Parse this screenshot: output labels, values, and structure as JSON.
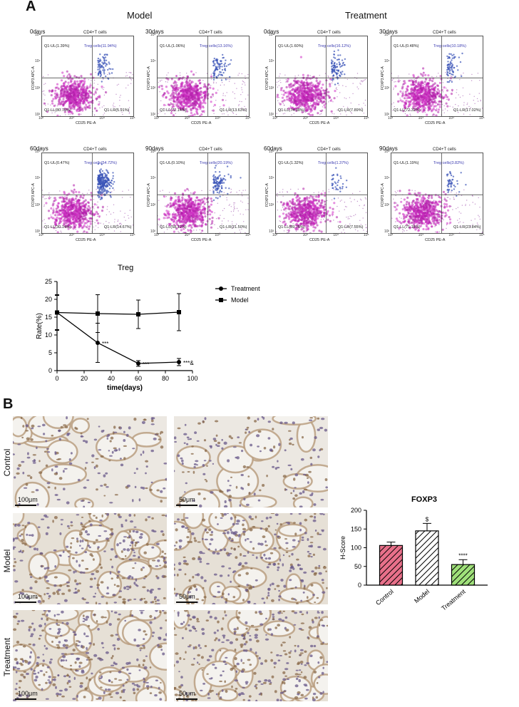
{
  "panel_a": {
    "letter": "A",
    "groups": [
      {
        "title": "Model",
        "plots": [
          {
            "day": "0days",
            "header": "CD4+T cells",
            "ul": "Q1-UL(1.39%)",
            "treg": "Treg cells(11.94%)",
            "ll": "Q1-LL(80.76%)",
            "lr": "Q1-LR(5.91%)"
          },
          {
            "day": "30days",
            "header": "CD4+T cells",
            "ul": "Q1-UL(1.06%)",
            "treg": "Treg cells(13.16%)",
            "ll": "Q1-LL(72.14%)",
            "lr": "Q1-LR(13.63%)"
          },
          {
            "day": "60days",
            "header": "CD4+T cells",
            "ul": "Q1-UL(0.47%)",
            "treg": "Treg cells(54.72%)",
            "ll": "Q1-LL(30.14%)",
            "lr": "Q1-LR(14.67%)"
          },
          {
            "day": "90days",
            "header": "CD4+T cells",
            "ul": "Q1-UL(0.10%)",
            "treg": "Treg cells(20.19%)",
            "ll": "Q1-LL(58.12%)",
            "lr": "Q1-LR(21.50%)"
          }
        ]
      },
      {
        "title": "Treatment",
        "plots": [
          {
            "day": "0days",
            "header": "CD4+T cells",
            "ul": "Q1-UL(1.60%)",
            "treg": "Treg cells(16.12%)",
            "ll": "Q1-LL(74.38%)",
            "lr": "Q1-LR(7.89%)"
          },
          {
            "day": "30days",
            "header": "CD4+T cells",
            "ul": "Q1-UL(0.48%)",
            "treg": "Treg cells(10.18%)",
            "ll": "Q1-LL(72.32%)",
            "lr": "Q1-LR(17.02%)"
          },
          {
            "day": "60days",
            "header": "CD4+T cells",
            "ul": "Q1-UL(1.32%)",
            "treg": "Treg cells(1.37%)",
            "ll": "Q1-LL(89.75%)",
            "lr": "Q1-LR(7.55%)"
          },
          {
            "day": "90days",
            "header": "CD4+T cells",
            "ul": "Q1-UL(1.19%)",
            "treg": "Treg cells(3.82%)",
            "ll": "Q1-LL(71.15%)",
            "lr": "Q1-LR(23.84%)"
          }
        ]
      }
    ],
    "axis": {
      "x": "CD25 PE-A",
      "y": "FOXP3 APC-A",
      "ticks": [
        "10²",
        "10³",
        "10⁴",
        "10⁵"
      ]
    }
  },
  "panel_b": {
    "letter": "B",
    "rows": [
      "Control",
      "Model",
      "Treatment"
    ],
    "scale_left": "100μm",
    "scale_right": "50μm"
  },
  "chart_data": [
    {
      "type": "line",
      "title": "Treg",
      "xlabel": "time(days)",
      "ylabel": "Rate(%)",
      "xlim": [
        0,
        100
      ],
      "ylim": [
        0,
        25
      ],
      "xticks": [
        0,
        20,
        40,
        60,
        80,
        100
      ],
      "yticks": [
        0,
        5,
        10,
        15,
        20,
        25
      ],
      "legend_position": "right",
      "series": [
        {
          "name": "Treatment",
          "marker": "circle",
          "x": [
            0,
            30,
            60,
            90
          ],
          "y": [
            16.3,
            7.8,
            2.0,
            2.4
          ],
          "err": [
            5.0,
            5.5,
            0.8,
            1.0
          ],
          "annotations": [
            "",
            "***",
            "***",
            "***&"
          ]
        },
        {
          "name": "Model",
          "marker": "square",
          "x": [
            0,
            30,
            60,
            90
          ],
          "y": [
            16.3,
            16.0,
            15.8,
            16.4
          ],
          "err": [
            4.8,
            5.3,
            4.0,
            5.2
          ]
        }
      ]
    },
    {
      "type": "bar",
      "title": "FOXP3",
      "ylabel": "H-Score",
      "ylim": [
        0,
        200
      ],
      "yticks": [
        0,
        50,
        100,
        150,
        200
      ],
      "categories": [
        "Control",
        "Model",
        "Treatment"
      ],
      "values": [
        106,
        145,
        55
      ],
      "errors": [
        9,
        20,
        13
      ],
      "annotations": [
        "",
        "$",
        "****"
      ],
      "colors": [
        "#e8708a",
        "#ffffff",
        "#9fe07a"
      ]
    }
  ]
}
